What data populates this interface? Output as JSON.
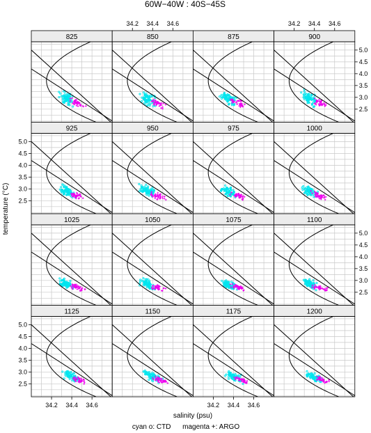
{
  "chart_data": {
    "type": "scatter",
    "title": "60W−40W : 40S−45S",
    "xlabel": "salinity (psu)",
    "ylabel": "temperature (°C)",
    "legend_text": "cyan o: CTD      magenta +: ARGO",
    "xlim": [
      34.0,
      34.8
    ],
    "ylim": [
      1.95,
      5.35
    ],
    "x_ticks": [
      34.2,
      34.4,
      34.6
    ],
    "x_tick_labels": [
      "34.2",
      "34.4",
      "34.6"
    ],
    "y_ticks": [
      2.5,
      3.0,
      3.5,
      4.0,
      4.5,
      5.0
    ],
    "y_tick_labels": [
      "2.5",
      "3.0",
      "3.5",
      "4.0",
      "4.5",
      "5.0"
    ],
    "grid": true,
    "layout": {
      "columns": 4,
      "rows": 4
    },
    "series": [
      {
        "name": "CTD",
        "color": "#00e5ee",
        "marker": "o"
      },
      {
        "name": "ARGO",
        "color": "#ee00ee",
        "marker": "+"
      }
    ],
    "panels": [
      {
        "label": "825",
        "ctd": {
          "cx": 34.35,
          "cy": 2.95,
          "sx": 0.1,
          "sy": 0.35
        },
        "argo": {
          "cx": 34.45,
          "cy": 2.75,
          "sx": 0.1,
          "sy": 0.2
        }
      },
      {
        "label": "850",
        "ctd": {
          "cx": 34.35,
          "cy": 2.95,
          "sx": 0.1,
          "sy": 0.35
        },
        "argo": {
          "cx": 34.45,
          "cy": 2.75,
          "sx": 0.1,
          "sy": 0.2
        }
      },
      {
        "label": "875",
        "ctd": {
          "cx": 34.35,
          "cy": 2.95,
          "sx": 0.1,
          "sy": 0.35
        },
        "argo": {
          "cx": 34.45,
          "cy": 2.75,
          "sx": 0.1,
          "sy": 0.2
        }
      },
      {
        "label": "900",
        "ctd": {
          "cx": 34.35,
          "cy": 2.95,
          "sx": 0.1,
          "sy": 0.35
        },
        "argo": {
          "cx": 34.45,
          "cy": 2.75,
          "sx": 0.1,
          "sy": 0.2
        }
      },
      {
        "label": "925",
        "ctd": {
          "cx": 34.35,
          "cy": 2.9,
          "sx": 0.1,
          "sy": 0.3
        },
        "argo": {
          "cx": 34.45,
          "cy": 2.7,
          "sx": 0.1,
          "sy": 0.18
        }
      },
      {
        "label": "950",
        "ctd": {
          "cx": 34.35,
          "cy": 2.9,
          "sx": 0.1,
          "sy": 0.3
        },
        "argo": {
          "cx": 34.45,
          "cy": 2.7,
          "sx": 0.1,
          "sy": 0.18
        }
      },
      {
        "label": "975",
        "ctd": {
          "cx": 34.35,
          "cy": 2.9,
          "sx": 0.1,
          "sy": 0.3
        },
        "argo": {
          "cx": 34.45,
          "cy": 2.7,
          "sx": 0.1,
          "sy": 0.18
        }
      },
      {
        "label": "1000",
        "ctd": {
          "cx": 34.35,
          "cy": 2.9,
          "sx": 0.1,
          "sy": 0.3
        },
        "argo": {
          "cx": 34.45,
          "cy": 2.7,
          "sx": 0.1,
          "sy": 0.18
        }
      },
      {
        "label": "1025",
        "ctd": {
          "cx": 34.35,
          "cy": 2.85,
          "sx": 0.1,
          "sy": 0.25
        },
        "argo": {
          "cx": 34.45,
          "cy": 2.7,
          "sx": 0.1,
          "sy": 0.15
        }
      },
      {
        "label": "1050",
        "ctd": {
          "cx": 34.35,
          "cy": 2.85,
          "sx": 0.1,
          "sy": 0.25
        },
        "argo": {
          "cx": 34.45,
          "cy": 2.7,
          "sx": 0.1,
          "sy": 0.15
        }
      },
      {
        "label": "1075",
        "ctd": {
          "cx": 34.35,
          "cy": 2.85,
          "sx": 0.1,
          "sy": 0.25
        },
        "argo": {
          "cx": 34.45,
          "cy": 2.7,
          "sx": 0.1,
          "sy": 0.15
        }
      },
      {
        "label": "1100",
        "ctd": {
          "cx": 34.35,
          "cy": 2.85,
          "sx": 0.1,
          "sy": 0.25
        },
        "argo": {
          "cx": 34.45,
          "cy": 2.7,
          "sx": 0.1,
          "sy": 0.15
        }
      },
      {
        "label": "1125",
        "ctd": {
          "cx": 34.4,
          "cy": 2.8,
          "sx": 0.12,
          "sy": 0.25
        },
        "argo": {
          "cx": 34.48,
          "cy": 2.65,
          "sx": 0.1,
          "sy": 0.15
        }
      },
      {
        "label": "1150",
        "ctd": {
          "cx": 34.4,
          "cy": 2.8,
          "sx": 0.12,
          "sy": 0.25
        },
        "argo": {
          "cx": 34.48,
          "cy": 2.65,
          "sx": 0.1,
          "sy": 0.15
        }
      },
      {
        "label": "1175",
        "ctd": {
          "cx": 34.4,
          "cy": 2.8,
          "sx": 0.12,
          "sy": 0.25
        },
        "argo": {
          "cx": 34.48,
          "cy": 2.65,
          "sx": 0.1,
          "sy": 0.15
        }
      },
      {
        "label": "1200",
        "ctd": {
          "cx": 34.4,
          "cy": 2.8,
          "sx": 0.12,
          "sy": 0.25
        },
        "argo": {
          "cx": 34.48,
          "cy": 2.65,
          "sx": 0.1,
          "sy": 0.15
        }
      }
    ],
    "curves": {
      "parabola": {
        "vertex_s": 34.15,
        "vertex_t": 3.7,
        "k": 0.16
      },
      "lines": [
        {
          "s0": 34.0,
          "t0": 4.2,
          "s1": 34.8,
          "t1": 2.0
        },
        {
          "s0": 34.0,
          "t0": 5.0,
          "s1": 34.8,
          "t1": 1.9
        }
      ]
    }
  }
}
